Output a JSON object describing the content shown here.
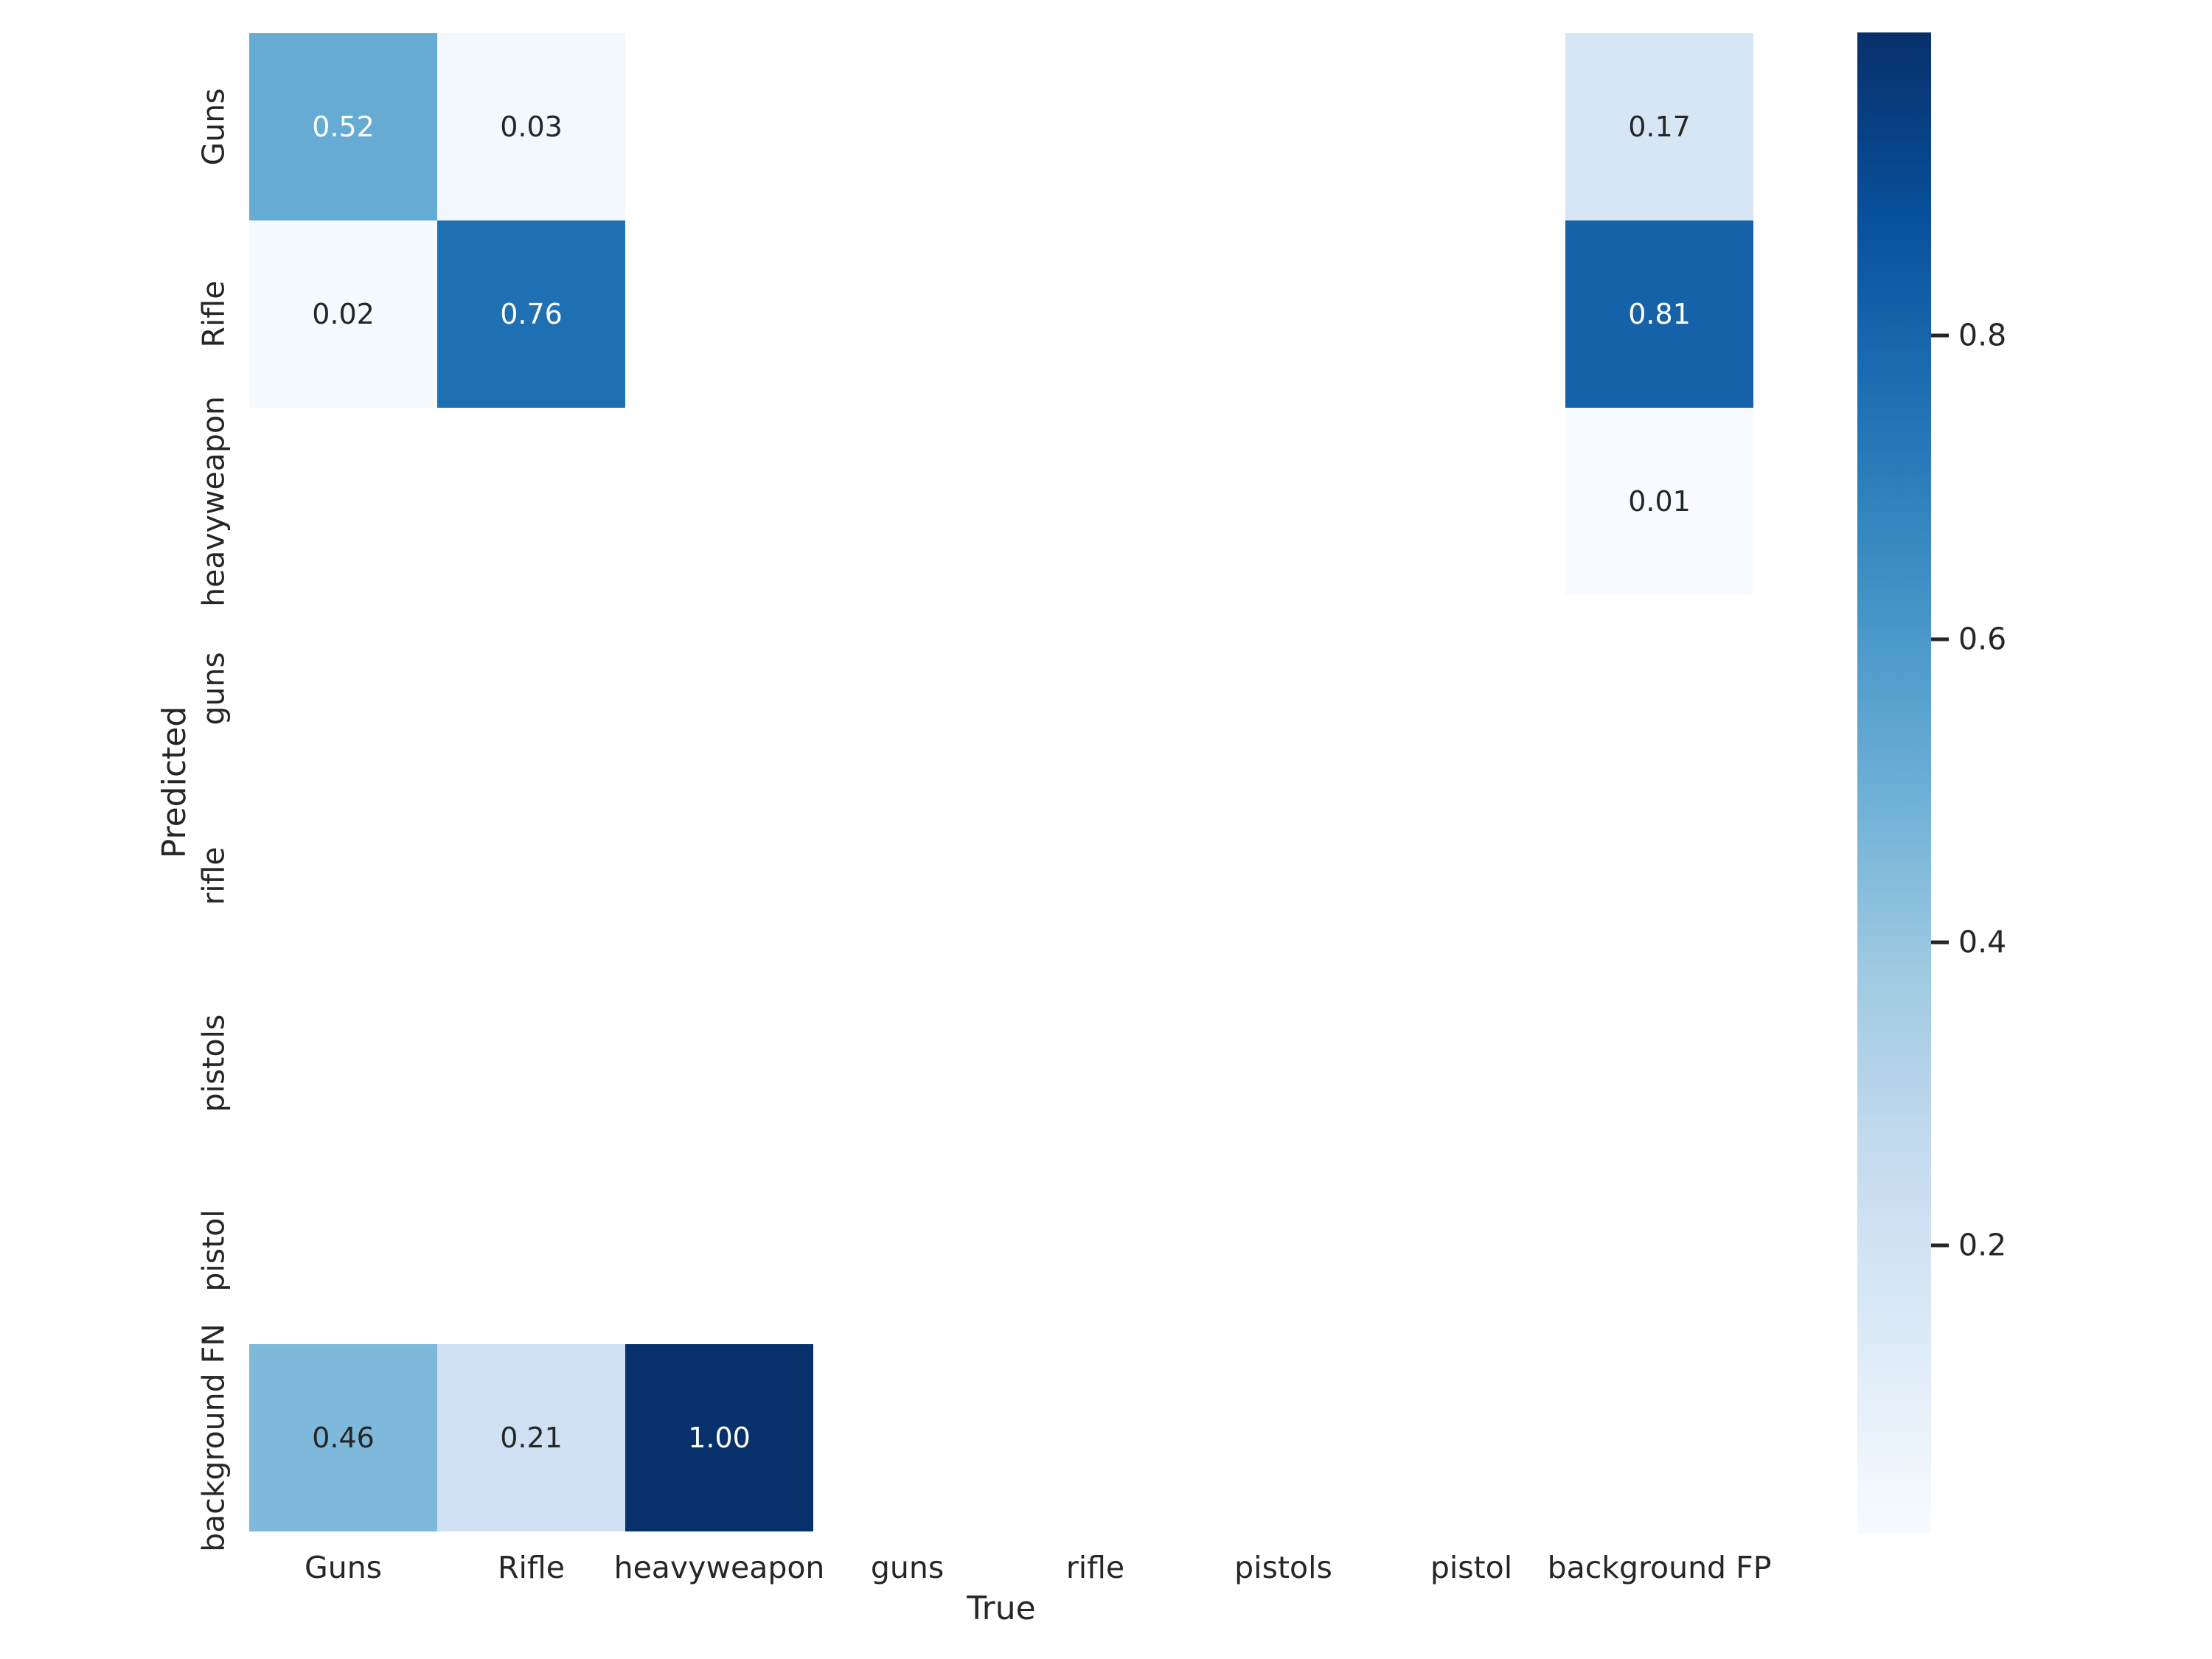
{
  "chart_data": {
    "type": "heatmap",
    "title": "",
    "xlabel": "True",
    "ylabel": "Predicted",
    "x_categories": [
      "Guns",
      "Rifle",
      "heavyweapon",
      "guns",
      "rifle",
      "pistols",
      "pistol",
      "background FP"
    ],
    "y_categories": [
      "Guns",
      "Rifle",
      "heavyweapon",
      "guns",
      "rifle",
      "pistols",
      "pistol",
      "background FN"
    ],
    "matrix": [
      [
        0.52,
        0.03,
        null,
        null,
        null,
        null,
        null,
        0.17
      ],
      [
        0.02,
        0.76,
        null,
        null,
        null,
        null,
        null,
        0.81
      ],
      [
        null,
        null,
        null,
        null,
        null,
        null,
        null,
        0.01
      ],
      [
        null,
        null,
        null,
        null,
        null,
        null,
        null,
        null
      ],
      [
        null,
        null,
        null,
        null,
        null,
        null,
        null,
        null
      ],
      [
        null,
        null,
        null,
        null,
        null,
        null,
        null,
        null
      ],
      [
        null,
        null,
        null,
        null,
        null,
        null,
        null,
        null
      ],
      [
        0.46,
        0.21,
        1.0,
        null,
        null,
        null,
        null,
        null
      ]
    ],
    "annotation_format_decimals": 2,
    "grid": false,
    "colormap": "Blues",
    "colormap_stops": [
      "#f7fbff",
      "#deebf7",
      "#c6dbef",
      "#9ecae1",
      "#6baed6",
      "#4292c6",
      "#2171b5",
      "#08519c",
      "#08306b"
    ],
    "vmin": 0.01,
    "vmax": 1.0,
    "colorbar": {
      "position": "right",
      "ticks": [
        0.2,
        0.4,
        0.6,
        0.8
      ],
      "tick_labels": [
        "0.2",
        "0.4",
        "0.6",
        "0.8"
      ]
    }
  },
  "colors": {
    "background": "#ffffff",
    "text": "#262626",
    "annotation_dark": "#262626",
    "annotation_light": "#ffffff"
  }
}
